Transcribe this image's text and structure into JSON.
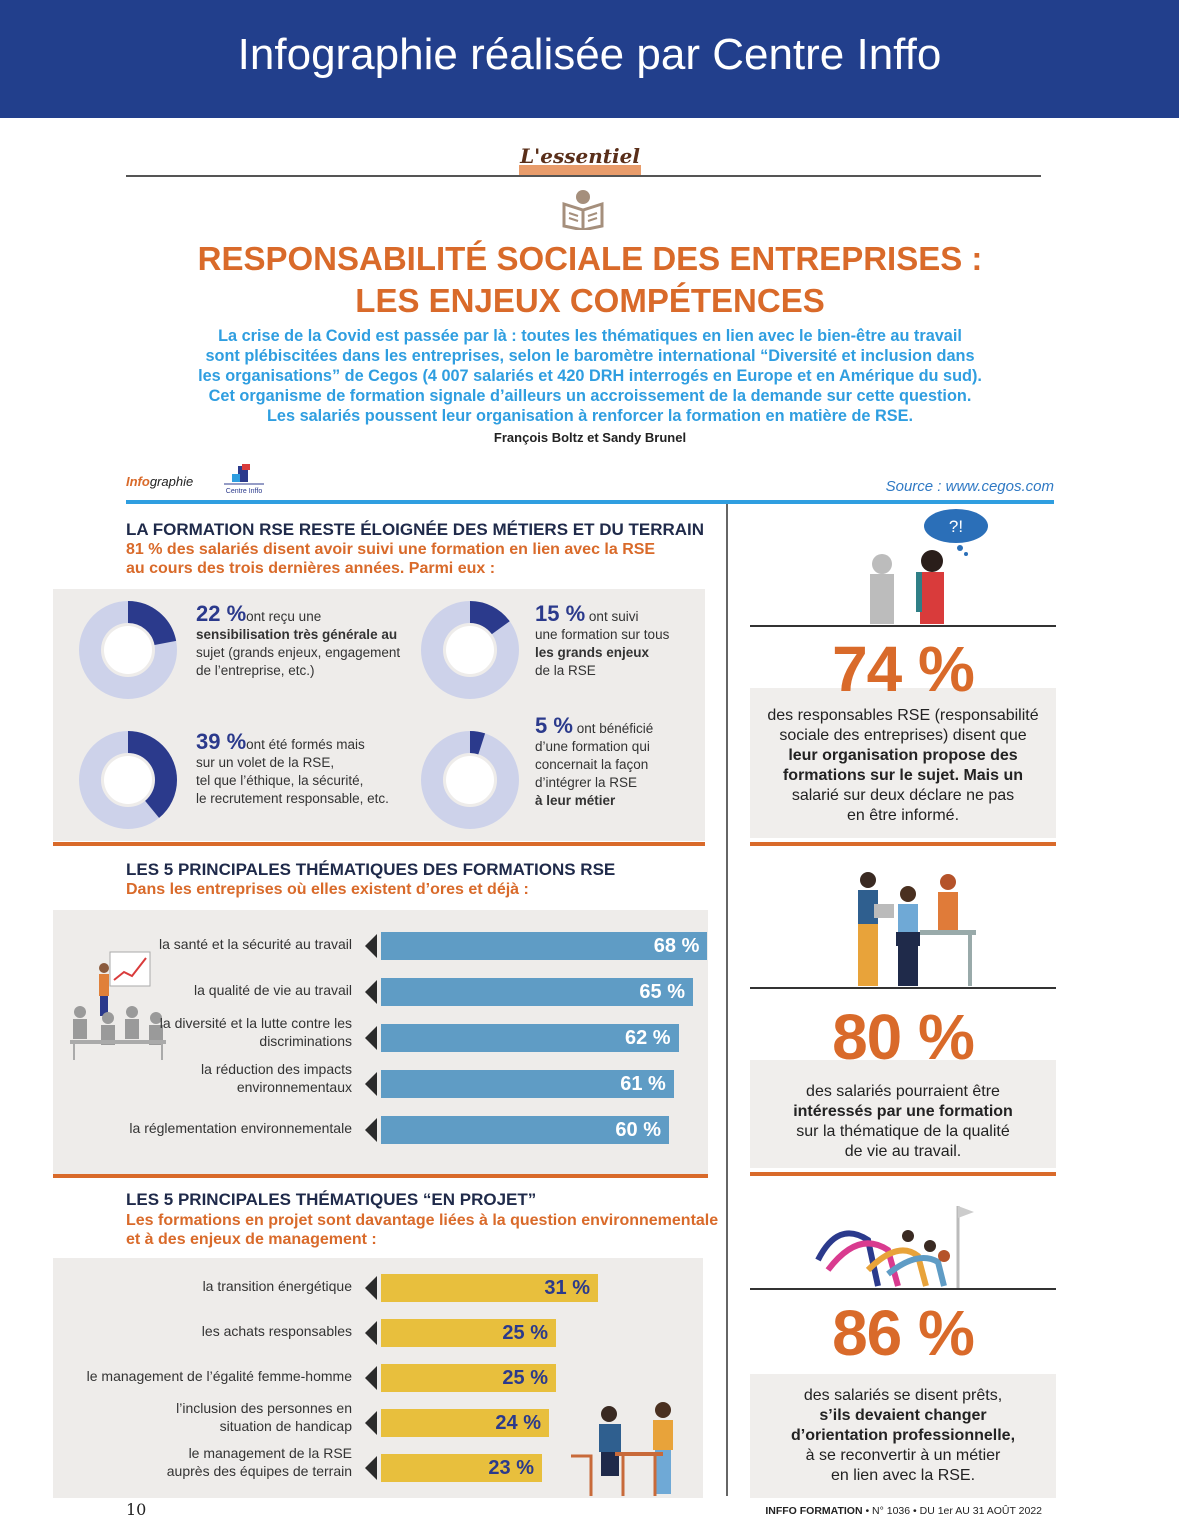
{
  "banner": {
    "title": "Infographie réalisée par Centre Inffo"
  },
  "header": {
    "section_label": "L'essentiel",
    "title_line1": "RESPONSABILITÉ SOCIALE DES ENTREPRISES :",
    "title_line2": "LES ENJEUX COMPÉTENCES",
    "intro_lines": [
      "La crise de la Covid est passée par là : toutes les thématiques en lien avec le bien-être au travail",
      "sont plébiscitées dans les entreprises, selon le baromètre international “Diversité et inclusion dans",
      "les organisations” de Cegos (4 007 salariés et 420 DRH interrogés en Europe et en Amérique du sud).",
      "Cet organisme de formation signale d’ailleurs un accroissement de la demande sur cette question.",
      "Les salariés poussent leur organisation à renforcer la formation en matière de RSE."
    ],
    "authors": "François Boltz et Sandy Brunel",
    "infographie_label_bold": "Info",
    "infographie_label_rest": "graphie",
    "source": "Source : www.cegos.com"
  },
  "section1": {
    "title": "LA FORMATION RSE RESTE ÉLOIGNÉE DES MÉTIERS ET DU TERRAIN",
    "subtitle_line1": "81 % des salariés disent avoir suivi une formation en lien avec la RSE",
    "subtitle_line2": "au cours des trois dernières années. Parmi eux :",
    "donuts": [
      {
        "pct": "22 %",
        "value": 22,
        "lines": [
          "ont reçu une",
          "sensibilisation très générale au",
          "sujet (grands enjeux, engagement",
          "de l’entreprise, etc.)"
        ]
      },
      {
        "pct": "15 %",
        "value": 15,
        "lines": [
          "ont suivi",
          "une formation sur tous",
          "les grands enjeux",
          "de la RSE"
        ]
      },
      {
        "pct": "39 %",
        "value": 39,
        "lines": [
          "ont été formés mais",
          "sur un volet de la RSE,",
          "tel que l’éthique, la sécurité,",
          "le recrutement responsable, etc."
        ]
      },
      {
        "pct": "5 %",
        "value": 5,
        "lines": [
          "ont bénéficié",
          "d’une formation qui",
          "concernait la façon",
          "d’intégrer la RSE",
          "à leur métier"
        ]
      }
    ]
  },
  "section2": {
    "title": "LES 5 PRINCIPALES THÉMATIQUES DES FORMATIONS RSE",
    "subtitle": "Dans les entreprises où elles existent d’ores et déjà :",
    "bars": [
      {
        "label": "la santé et la sécurité au travail",
        "value": 68,
        "display": "68 %"
      },
      {
        "label": "la qualité de vie au travail",
        "value": 65,
        "display": "65 %"
      },
      {
        "label": "la diversité et la lutte contre les discriminations",
        "value": 62,
        "display": "62 %"
      },
      {
        "label": "la réduction des impacts environnementaux",
        "value": 61,
        "display": "61 %"
      },
      {
        "label": "la réglementation environnementale",
        "value": 60,
        "display": "60 %"
      }
    ]
  },
  "section3": {
    "title": "LES 5 PRINCIPALES THÉMATIQUES “EN PROJET”",
    "subtitle_line1": "Les formations en projet sont davantage liées à la question environnementale",
    "subtitle_line2": "et à des enjeux de management :",
    "bars": [
      {
        "label": "la transition énergétique",
        "value": 31,
        "display": "31 %"
      },
      {
        "label": "les achats responsables",
        "value": 25,
        "display": "25 %"
      },
      {
        "label": "le management de l’égalité femme-homme",
        "value": 25,
        "display": "25 %"
      },
      {
        "label": "l’inclusion des personnes en situation de handicap",
        "value": 24,
        "display": "24 %"
      },
      {
        "label": "le management de la RSE auprès des équipes de terrain",
        "value": 23,
        "display": "23 %"
      }
    ]
  },
  "side": {
    "bubble": "?!",
    "stats": [
      {
        "number": "74 %",
        "lines": [
          "des responsables RSE (responsabilité",
          "sociale des entreprises) disent que",
          "leur organisation propose des",
          "formations sur le sujet. Mais un",
          "salarié sur deux déclare ne pas",
          "en être informé."
        ]
      },
      {
        "number": "80 %",
        "lines": [
          "des salariés pourraient être",
          "intéressés par une formation",
          "sur la thématique de la qualité",
          "de vie au travail."
        ]
      },
      {
        "number": "86 %",
        "lines": [
          "des salariés se disent prêts,",
          "s’ils devaient changer",
          "d’orientation professionnelle,",
          "à se reconvertir à un métier",
          "en lien avec la RSE."
        ]
      }
    ]
  },
  "footer": {
    "page_number": "10",
    "magazine_bold": "INFFO FORMATION",
    "issue": " • N° 1036 • DU 1er AU 31 AOÛT 2022"
  },
  "colors": {
    "banner": "#223f8c",
    "orange": "#d96a2a",
    "blue_text": "#2f9ee0",
    "donut_dark": "#2b3a8c",
    "bar_blue": "#5f9cc5",
    "bar_yellow": "#e8bf3d"
  }
}
